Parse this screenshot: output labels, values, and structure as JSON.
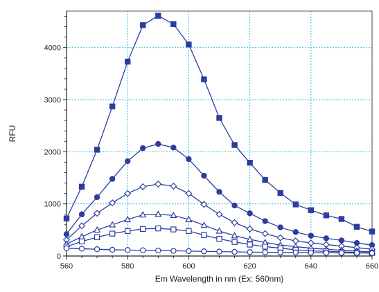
{
  "chart_data": {
    "type": "line",
    "title": "",
    "xlabel": "Em Wavelength in nm  (Ex: 560nm)",
    "ylabel": "RFU",
    "xlim": [
      560,
      660
    ],
    "ylim": [
      0,
      4700
    ],
    "xticks": [
      560,
      580,
      600,
      620,
      640,
      660
    ],
    "yticks": [
      0,
      1000,
      2000,
      3000,
      4000
    ],
    "grid": true,
    "legend": "none",
    "colors": {
      "line": "#2b3e9e",
      "grid": "#29b6e8",
      "axis": "#222222"
    },
    "x": [
      560,
      565,
      570,
      575,
      580,
      585,
      590,
      595,
      600,
      605,
      610,
      615,
      620,
      625,
      630,
      635,
      640,
      645,
      650,
      655,
      660
    ],
    "series": [
      {
        "marker": "square-filled",
        "values": [
          720,
          1330,
          2040,
          2870,
          3730,
          4430,
          4610,
          4450,
          4060,
          3390,
          2650,
          2130,
          1790,
          1460,
          1210,
          990,
          880,
          780,
          710,
          560,
          470
        ]
      },
      {
        "marker": "circle-filled",
        "values": [
          420,
          800,
          1130,
          1480,
          1820,
          2070,
          2150,
          2080,
          1860,
          1540,
          1230,
          970,
          820,
          670,
          550,
          460,
          390,
          340,
          300,
          250,
          210
        ]
      },
      {
        "marker": "diamond-open",
        "values": [
          310,
          580,
          820,
          1020,
          1200,
          1330,
          1380,
          1340,
          1200,
          990,
          800,
          640,
          520,
          430,
          350,
          290,
          250,
          220,
          190,
          160,
          130
        ]
      },
      {
        "marker": "triangle-open",
        "values": [
          230,
          370,
          500,
          600,
          700,
          790,
          800,
          780,
          700,
          590,
          480,
          390,
          320,
          260,
          210,
          180,
          150,
          130,
          110,
          95,
          80
        ]
      },
      {
        "marker": "square-open",
        "values": [
          180,
          280,
          360,
          430,
          480,
          520,
          530,
          510,
          480,
          400,
          330,
          270,
          220,
          180,
          150,
          120,
          100,
          90,
          80,
          70,
          60
        ]
      },
      {
        "marker": "circle-open",
        "values": [
          150,
          140,
          130,
          120,
          115,
          110,
          105,
          100,
          95,
          90,
          85,
          80,
          75,
          72,
          70,
          68,
          65,
          62,
          60,
          58,
          55
        ]
      }
    ]
  }
}
